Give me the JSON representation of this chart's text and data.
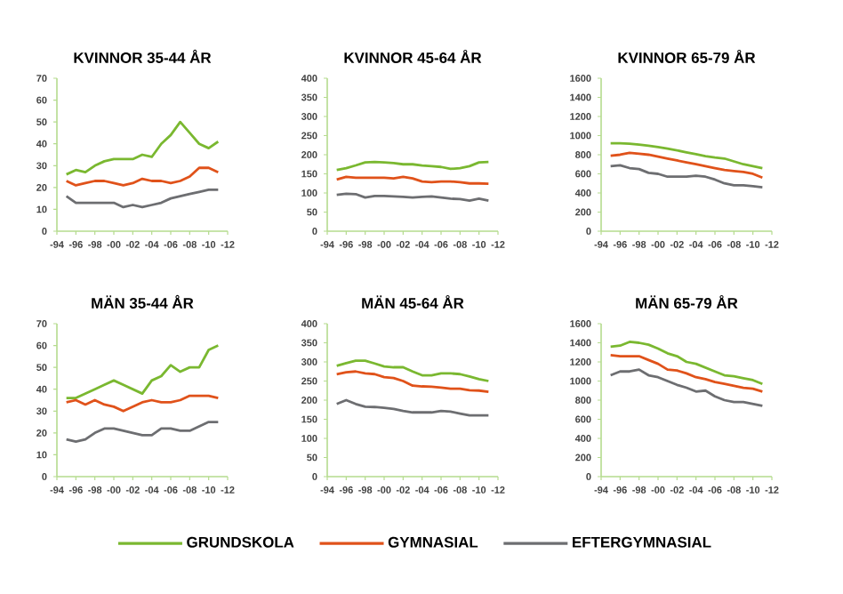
{
  "chart_data": [
    {
      "type": "line",
      "title": "KVINNOR 35-44 ÅR",
      "legend": "bottom",
      "categories": [
        "-94",
        null,
        "-96",
        null,
        "-98",
        null,
        "-00",
        null,
        "-02",
        null,
        "-04",
        null,
        "-06",
        null,
        "-08",
        null,
        "-10",
        null,
        "-12"
      ],
      "ylim": [
        0,
        70
      ],
      "yticks": [
        0,
        10,
        20,
        30,
        40,
        50,
        60,
        70
      ],
      "series": [
        {
          "name": "GRUNDSKOLA",
          "color": "#7ab830",
          "values": [
            null,
            26,
            28,
            27,
            30,
            32,
            33,
            33,
            33,
            35,
            34,
            40,
            44,
            50,
            45,
            40,
            38,
            41,
            null
          ]
        },
        {
          "name": "GYMNASIAL",
          "color": "#e0521a",
          "values": [
            null,
            23,
            21,
            22,
            23,
            23,
            22,
            21,
            22,
            24,
            23,
            23,
            22,
            23,
            25,
            29,
            29,
            27,
            null
          ]
        },
        {
          "name": "EFTERGYMNASIAL",
          "color": "#6d6e71",
          "values": [
            null,
            16,
            13,
            13,
            13,
            13,
            13,
            11,
            12,
            11,
            12,
            13,
            15,
            16,
            17,
            18,
            19,
            19,
            null
          ]
        }
      ]
    },
    {
      "type": "line",
      "title": "KVINNOR 45-64 ÅR",
      "categories": [
        "-94",
        null,
        "-96",
        null,
        "-98",
        null,
        "-00",
        null,
        "-02",
        null,
        "-04",
        null,
        "-06",
        null,
        "-08",
        null,
        "-10",
        null,
        "-12"
      ],
      "ylim": [
        0,
        400
      ],
      "yticks": [
        0,
        50,
        100,
        150,
        200,
        250,
        300,
        350,
        400
      ],
      "series": [
        {
          "color": "#7ab830",
          "values": [
            null,
            160,
            165,
            172,
            180,
            181,
            180,
            178,
            175,
            175,
            172,
            170,
            168,
            163,
            165,
            170,
            180,
            181,
            null
          ]
        },
        {
          "color": "#e0521a",
          "values": [
            null,
            135,
            142,
            140,
            140,
            140,
            140,
            138,
            142,
            138,
            130,
            128,
            130,
            130,
            128,
            125,
            125,
            124,
            null
          ]
        },
        {
          "color": "#6d6e71",
          "values": [
            null,
            95,
            98,
            97,
            88,
            92,
            92,
            91,
            90,
            88,
            90,
            91,
            88,
            85,
            84,
            80,
            85,
            80,
            null
          ]
        }
      ]
    },
    {
      "type": "line",
      "title": "KVINNOR 65-79 ÅR",
      "categories": [
        "-94",
        null,
        "-96",
        null,
        "-98",
        null,
        "-00",
        null,
        "-02",
        null,
        "-04",
        null,
        "-06",
        null,
        "-08",
        null,
        "-10",
        null,
        "-12"
      ],
      "ylim": [
        0,
        1600
      ],
      "yticks": [
        0,
        200,
        400,
        600,
        800,
        1000,
        1200,
        1400,
        1600
      ],
      "series": [
        {
          "color": "#7ab830",
          "values": [
            null,
            920,
            920,
            915,
            905,
            895,
            880,
            865,
            845,
            825,
            805,
            785,
            770,
            760,
            730,
            700,
            680,
            660,
            null
          ]
        },
        {
          "color": "#e0521a",
          "values": [
            null,
            790,
            800,
            820,
            810,
            800,
            780,
            760,
            740,
            720,
            700,
            680,
            660,
            640,
            630,
            620,
            600,
            560,
            null
          ]
        },
        {
          "color": "#6d6e71",
          "values": [
            null,
            680,
            690,
            660,
            650,
            610,
            600,
            570,
            570,
            570,
            580,
            570,
            540,
            500,
            480,
            480,
            470,
            460,
            null
          ]
        }
      ]
    },
    {
      "type": "line",
      "title": "MÄN 35-44 ÅR",
      "categories": [
        "-94",
        null,
        "-96",
        null,
        "-98",
        null,
        "-00",
        null,
        "-02",
        null,
        "-04",
        null,
        "-06",
        null,
        "-08",
        null,
        "-10",
        null,
        "-12"
      ],
      "ylim": [
        0,
        70
      ],
      "yticks": [
        0,
        10,
        20,
        30,
        40,
        50,
        60,
        70
      ],
      "series": [
        {
          "color": "#7ab830",
          "values": [
            null,
            36,
            36,
            38,
            40,
            42,
            44,
            42,
            40,
            38,
            44,
            46,
            51,
            48,
            50,
            50,
            58,
            60,
            null
          ]
        },
        {
          "color": "#e0521a",
          "values": [
            null,
            34,
            35,
            33,
            35,
            33,
            32,
            30,
            32,
            34,
            35,
            34,
            34,
            35,
            37,
            37,
            37,
            36,
            null
          ]
        },
        {
          "color": "#6d6e71",
          "values": [
            null,
            17,
            16,
            17,
            20,
            22,
            22,
            21,
            20,
            19,
            19,
            22,
            22,
            21,
            21,
            23,
            25,
            25,
            null
          ]
        }
      ]
    },
    {
      "type": "line",
      "title": "MÄN 45-64 ÅR",
      "categories": [
        "-94",
        null,
        "-96",
        null,
        "-98",
        null,
        "-00",
        null,
        "-02",
        null,
        "-04",
        null,
        "-06",
        null,
        "-08",
        null,
        "-10",
        null,
        "-12"
      ],
      "ylim": [
        0,
        400
      ],
      "yticks": [
        0,
        50,
        100,
        150,
        200,
        250,
        300,
        350,
        400
      ],
      "series": [
        {
          "color": "#7ab830",
          "values": [
            null,
            290,
            297,
            303,
            303,
            296,
            288,
            286,
            286,
            275,
            265,
            265,
            270,
            270,
            268,
            262,
            255,
            250,
            null
          ]
        },
        {
          "color": "#e0521a",
          "values": [
            null,
            268,
            273,
            275,
            270,
            268,
            260,
            258,
            250,
            238,
            236,
            235,
            233,
            230,
            230,
            226,
            225,
            222,
            null
          ]
        },
        {
          "color": "#6d6e71",
          "values": [
            null,
            190,
            200,
            190,
            183,
            182,
            180,
            177,
            172,
            168,
            168,
            168,
            172,
            170,
            165,
            160,
            160,
            160,
            null
          ]
        }
      ]
    },
    {
      "type": "line",
      "title": "MÄN 65-79 ÅR",
      "categories": [
        "-94",
        null,
        "-96",
        null,
        "-98",
        null,
        "-00",
        null,
        "-02",
        null,
        "-04",
        null,
        "-06",
        null,
        "-08",
        null,
        "-10",
        null,
        "-12"
      ],
      "ylim": [
        0,
        1600
      ],
      "yticks": [
        0,
        200,
        400,
        600,
        800,
        1000,
        1200,
        1400,
        1600
      ],
      "series": [
        {
          "color": "#7ab830",
          "values": [
            null,
            1360,
            1370,
            1410,
            1400,
            1380,
            1340,
            1290,
            1260,
            1200,
            1180,
            1140,
            1100,
            1060,
            1050,
            1030,
            1010,
            970,
            null
          ]
        },
        {
          "color": "#e0521a",
          "values": [
            null,
            1270,
            1260,
            1260,
            1260,
            1220,
            1180,
            1120,
            1110,
            1080,
            1040,
            1020,
            990,
            970,
            950,
            930,
            920,
            890,
            null
          ]
        },
        {
          "color": "#6d6e71",
          "values": [
            null,
            1060,
            1100,
            1100,
            1120,
            1060,
            1040,
            1000,
            960,
            930,
            890,
            900,
            840,
            800,
            780,
            780,
            760,
            740,
            null
          ]
        }
      ]
    }
  ]
}
